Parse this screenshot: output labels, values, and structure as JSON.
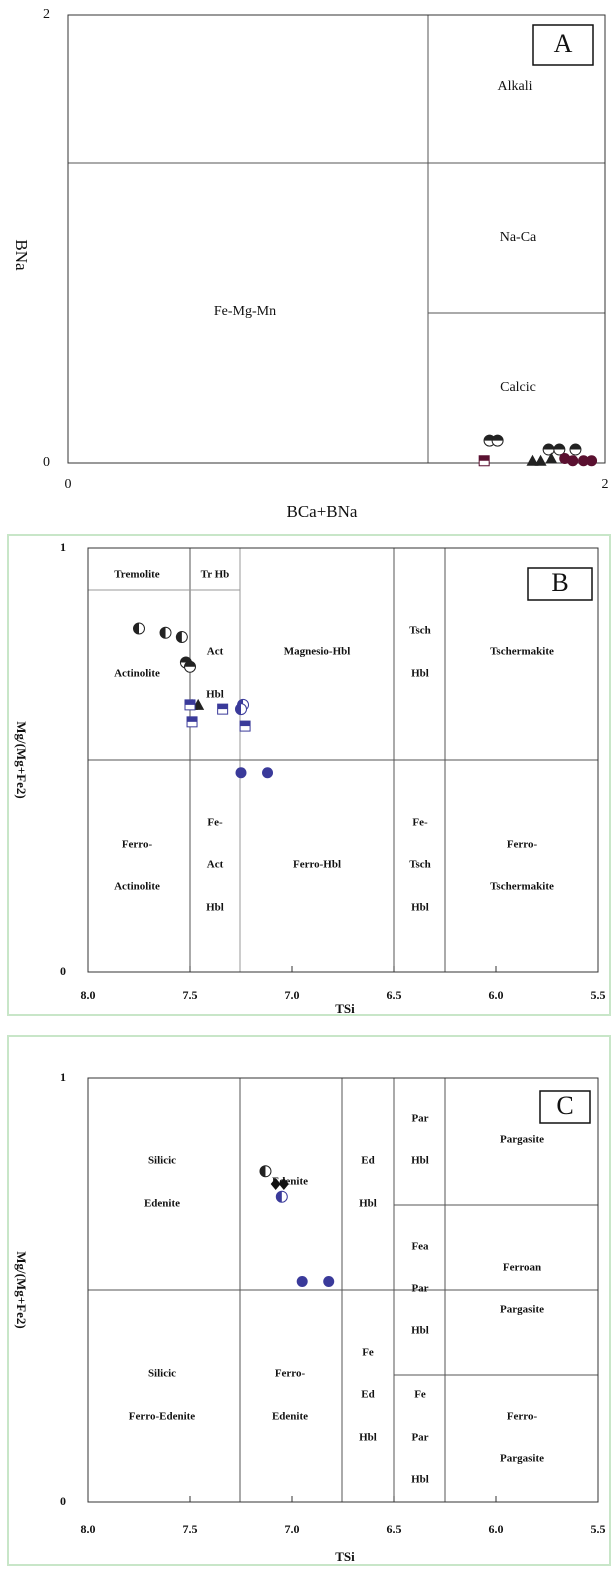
{
  "chart_data": [
    {
      "type": "scatter",
      "panel": "A",
      "x_label": "BCa+BNa",
      "y_label": "BNa",
      "xlim": [
        0,
        2
      ],
      "ylim": [
        0,
        2
      ],
      "xticks": [
        0,
        2
      ],
      "yticks": [
        0,
        2
      ],
      "annotations": [
        "Alkali",
        "Na-Ca",
        "Calcic",
        "Fe-Mg-Mn"
      ],
      "series": [
        {
          "marker": "half-top",
          "color": "#222222",
          "x": [
            1.57,
            1.6,
            1.79,
            1.83,
            1.89
          ],
          "values": [
            0.1,
            0.1,
            0.06,
            0.06,
            0.06
          ]
        },
        {
          "marker": "half-square",
          "color": "#5a1030",
          "x": [
            1.55
          ],
          "values": [
            0.01
          ]
        },
        {
          "marker": "triangle",
          "color": "#222222",
          "x": [
            1.73,
            1.76,
            1.8
          ],
          "values": [
            0.01,
            0.01,
            0.02
          ]
        },
        {
          "marker": "circle",
          "color": "#5a1030",
          "x": [
            1.85,
            1.88,
            1.92,
            1.95
          ],
          "values": [
            0.02,
            0.01,
            0.01,
            0.01
          ]
        }
      ]
    },
    {
      "type": "scatter",
      "panel": "B",
      "x_label": "TSi",
      "y_label": "Mg/(Mg+Fe2)",
      "xlim": [
        8,
        5.5
      ],
      "ylim": [
        0,
        1
      ],
      "xticks": [
        {
          "value": 8,
          "label": "8.0"
        },
        7.5,
        {
          "value": 7,
          "label": "7.0"
        },
        6.5,
        {
          "value": 6,
          "label": "6.0"
        },
        5.5
      ],
      "yticks": [
        0,
        1
      ],
      "annotations": [
        "Tremolite",
        "Tr Hb",
        "Act",
        "Actinolite",
        "Hbl",
        "Magnesio-Hbl",
        "Tsch",
        "Hbl",
        "Tschermakite",
        "Ferro-",
        "Actinolite",
        "Fe-",
        "Act",
        "Hbl",
        "Ferro-Hbl",
        "Fe-",
        "Tsch",
        "Hbl",
        "Ferro-",
        "Tschermakite"
      ],
      "series": [
        {
          "marker": "half-left",
          "color": "#222222",
          "x": [
            7.75,
            7.62,
            7.54
          ],
          "values": [
            0.81,
            0.8,
            0.79
          ]
        },
        {
          "marker": "half-top",
          "color": "#222222",
          "x": [
            7.52,
            7.5
          ],
          "values": [
            0.73,
            0.72
          ]
        },
        {
          "marker": "triangle",
          "color": "#222222",
          "x": [
            7.49,
            7.46
          ],
          "values": [
            0.63,
            0.63
          ]
        },
        {
          "marker": "half-square",
          "color": "#3a3a9a",
          "x": [
            7.5,
            7.49,
            7.34,
            7.23
          ],
          "values": [
            0.63,
            0.59,
            0.62,
            0.58
          ]
        },
        {
          "marker": "half-left",
          "color": "#3a3a9a",
          "x": [
            7.24,
            7.25
          ],
          "values": [
            0.63,
            0.62
          ]
        },
        {
          "marker": "circle",
          "color": "#3a3a9a",
          "x": [
            7.25,
            7.12
          ],
          "values": [
            0.47,
            0.47
          ]
        }
      ]
    },
    {
      "type": "scatter",
      "panel": "C",
      "x_label": "TSi",
      "y_label": "Mg/(Mg+Fe2)",
      "xlim": [
        8,
        5.5
      ],
      "ylim": [
        0,
        1
      ],
      "xticks": [
        {
          "value": 8,
          "label": "8.0"
        },
        7.5,
        {
          "value": 7,
          "label": "7.0"
        },
        6.5,
        {
          "value": 6,
          "label": "6.0"
        },
        5.5
      ],
      "yticks": [
        0,
        1
      ],
      "annotations": [
        "Silicic",
        "Edenite",
        "Edenite",
        "Ed",
        "Hbl",
        "Par",
        "Hbl",
        "Pargasite",
        "Fea",
        "Par",
        "Hbl",
        "Ferroan",
        "Pargasite",
        "Silicic",
        "Ferro-Edenite",
        "Ferro-",
        "Edenite",
        "Fe",
        "Ed",
        "Hbl",
        "Fe",
        "Par",
        "Hbl",
        "Ferro-",
        "Pargasite"
      ],
      "series": [
        {
          "marker": "half-left",
          "color": "#222222",
          "x": [
            7.13
          ],
          "values": [
            0.78
          ]
        },
        {
          "marker": "diamond",
          "color": "#111111",
          "x": [
            7.08,
            7.04
          ],
          "values": [
            0.75,
            0.75
          ]
        },
        {
          "marker": "half-left",
          "color": "#3a3a9a",
          "x": [
            7.05
          ],
          "values": [
            0.72
          ]
        },
        {
          "marker": "circle",
          "color": "#3a3a9a",
          "x": [
            6.95,
            6.82
          ],
          "values": [
            0.52,
            0.52
          ]
        }
      ]
    }
  ]
}
